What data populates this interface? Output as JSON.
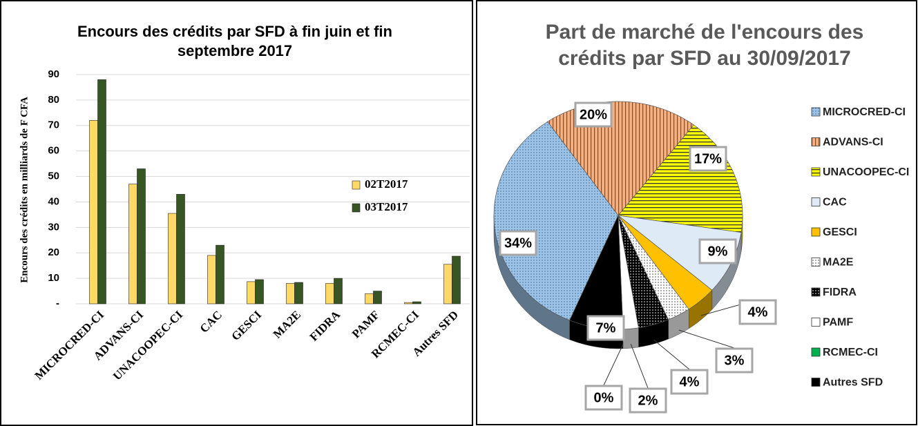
{
  "chart_data": [
    {
      "type": "bar",
      "title": "Encours des crédits par SFD à fin juin et fin septembre 2017",
      "ylabel": "Encours des crédits en milliards de F CFA",
      "categories": [
        "MICROCRED-CI",
        "ADVANS-CI",
        "UNACOOPEC-CI",
        "CAC",
        "GESCI",
        "MA2E",
        "FIDRA",
        "PAMF",
        "RCMEC-CI",
        "Autres SFD"
      ],
      "series": [
        {
          "name": "02T2017",
          "color": "#ffd966",
          "values": [
            72,
            47,
            35.5,
            19,
            8.7,
            8,
            8,
            4,
            0.5,
            15.5
          ]
        },
        {
          "name": "03T2017",
          "color": "#375623",
          "values": [
            88,
            53,
            43,
            23,
            9.5,
            8.4,
            10,
            5,
            0.8,
            18.7
          ]
        }
      ],
      "ylim": [
        0,
        90
      ],
      "yticks": [
        {
          "value": 0,
          "label": "-"
        },
        10,
        20,
        30,
        40,
        50,
        60,
        70,
        80,
        90
      ],
      "grid": true,
      "legend": "right"
    },
    {
      "type": "pie",
      "title": "Part de marché de l'encours des crédits par SFD au 30/09/2017",
      "categories": [
        "MICROCRED-CI",
        "ADVANS-CI",
        "UNACOOPEC-CI",
        "CAC",
        "GESCI",
        "MA2E",
        "FIDRA",
        "PAMF",
        "RCMEC-CI",
        "Autres SFD"
      ],
      "values": [
        34,
        20,
        17,
        9,
        4,
        3,
        4,
        2,
        0,
        7
      ],
      "value_labels": [
        "34%",
        "20%",
        "17%",
        "9%",
        "4%",
        "3%",
        "4%",
        "2%",
        "0%",
        "7%"
      ],
      "colors": [
        "#9dc3e6",
        "#f4b183",
        "#ffff00",
        "#deebf7",
        "#ffc000",
        "#ffffff",
        "#000000",
        "#ffffff",
        "#00b050",
        "#000000"
      ],
      "legend": "right"
    }
  ]
}
